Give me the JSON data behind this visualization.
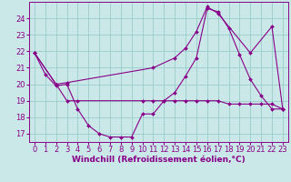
{
  "background_color": "#cbe8e8",
  "grid_color": "#99cccc",
  "line_color": "#880088",
  "marker_color": "#880088",
  "xlabel": "Windchill (Refroidissement éolien,°C)",
  "xlabel_fontsize": 6.5,
  "tick_fontsize": 6,
  "xlim": [
    -0.5,
    23.5
  ],
  "ylim": [
    16.5,
    25.0
  ],
  "yticks": [
    17,
    18,
    19,
    20,
    21,
    22,
    23,
    24
  ],
  "xticks": [
    0,
    1,
    2,
    3,
    4,
    5,
    6,
    7,
    8,
    9,
    10,
    11,
    12,
    13,
    14,
    15,
    16,
    17,
    18,
    19,
    20,
    21,
    22,
    23
  ],
  "series1_x": [
    0,
    1,
    2,
    3,
    4,
    5,
    6,
    7,
    8,
    9,
    10,
    11,
    12,
    13,
    14,
    15,
    16,
    17,
    18,
    19,
    20,
    21,
    22,
    23
  ],
  "series1_y": [
    21.9,
    20.6,
    19.9,
    20.0,
    18.5,
    17.5,
    17.0,
    16.8,
    16.8,
    16.8,
    18.2,
    18.2,
    19.0,
    19.5,
    20.5,
    21.6,
    24.6,
    24.4,
    23.4,
    21.8,
    20.3,
    19.3,
    18.5,
    18.5
  ],
  "series2_x": [
    0,
    2,
    3,
    11,
    13,
    14,
    15,
    16,
    17,
    20,
    22,
    23
  ],
  "series2_y": [
    21.9,
    20.0,
    20.1,
    21.0,
    21.6,
    22.2,
    23.2,
    24.7,
    24.3,
    21.9,
    23.5,
    18.5
  ],
  "series3_x": [
    0,
    2,
    3,
    4,
    10,
    11,
    12,
    13,
    14,
    15,
    16,
    17,
    18,
    19,
    20,
    21,
    22,
    23
  ],
  "series3_y": [
    21.9,
    20.0,
    19.0,
    19.0,
    19.0,
    19.0,
    19.0,
    19.0,
    19.0,
    19.0,
    19.0,
    19.0,
    18.8,
    18.8,
    18.8,
    18.8,
    18.8,
    18.5
  ]
}
